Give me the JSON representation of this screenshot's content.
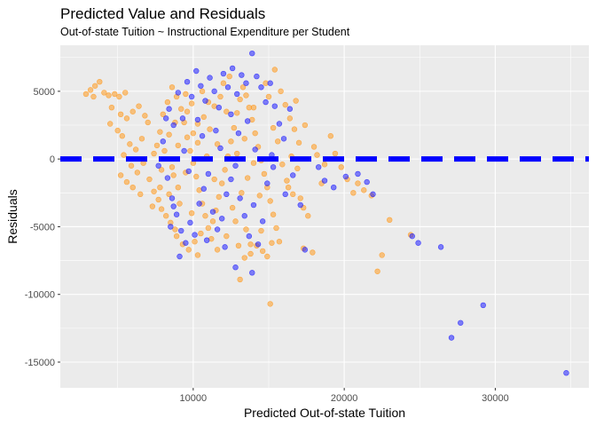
{
  "chart_data": {
    "type": "scatter",
    "title": "Predicted Value and Residuals",
    "subtitle": "Out-of-state Tuition ~ Instructional Expenditure per Student",
    "xlabel": "Predicted Out-of-state Tuition",
    "ylabel": "Residuals",
    "xlim": [
      1200,
      36200
    ],
    "ylim": [
      -16900,
      8400
    ],
    "x_ticks": [
      {
        "value": 10000,
        "label": "10000"
      },
      {
        "value": 20000,
        "label": "20000"
      },
      {
        "value": 30000,
        "label": "30000"
      }
    ],
    "y_ticks": [
      {
        "value": 5000,
        "label": "5000"
      },
      {
        "value": 0,
        "label": "0"
      },
      {
        "value": -5000,
        "label": "-5000"
      },
      {
        "value": -10000,
        "label": "-10000"
      },
      {
        "value": -15000,
        "label": "-15000"
      }
    ],
    "grid": true,
    "reference_line": {
      "y": 0,
      "style": "dashed",
      "color": "#0000ff"
    },
    "colors": {
      "series_a": "#ff9a1f",
      "series_b": "#1f1fff",
      "panel": "#ebebeb",
      "grid": "#ffffff"
    },
    "series": [
      {
        "color": "#ff9a1f",
        "points": [
          [
            2900,
            4800
          ],
          [
            3200,
            5100
          ],
          [
            3500,
            5400
          ],
          [
            3800,
            5700
          ],
          [
            4100,
            4900
          ],
          [
            4400,
            4700
          ],
          [
            4800,
            4800
          ],
          [
            5100,
            4600
          ],
          [
            5500,
            4900
          ],
          [
            3400,
            4600
          ],
          [
            4600,
            3800
          ],
          [
            5200,
            3300
          ],
          [
            5600,
            3000
          ],
          [
            6000,
            3500
          ],
          [
            6400,
            3900
          ],
          [
            6800,
            3200
          ],
          [
            7000,
            2700
          ],
          [
            4500,
            2600
          ],
          [
            5000,
            2100
          ],
          [
            5300,
            1700
          ],
          [
            5800,
            1100
          ],
          [
            6200,
            700
          ],
          [
            6600,
            1500
          ],
          [
            5400,
            300
          ],
          [
            5900,
            -500
          ],
          [
            6300,
            -1000
          ],
          [
            6700,
            -300
          ],
          [
            5200,
            -1200
          ],
          [
            5600,
            -1700
          ],
          [
            6000,
            -2100
          ],
          [
            6500,
            -2600
          ],
          [
            7100,
            -1500
          ],
          [
            7400,
            -2400
          ],
          [
            7700,
            -3000
          ],
          [
            7300,
            -3500
          ],
          [
            7900,
            -3700
          ],
          [
            8200,
            -4200
          ],
          [
            8500,
            -4700
          ],
          [
            8800,
            -5200
          ],
          [
            7800,
            -2100
          ],
          [
            7600,
            1000
          ],
          [
            7800,
            2000
          ],
          [
            8000,
            3300
          ],
          [
            8300,
            4200
          ],
          [
            8600,
            5300
          ],
          [
            8900,
            4600
          ],
          [
            9200,
            3700
          ],
          [
            9400,
            2700
          ],
          [
            9600,
            1600
          ],
          [
            9800,
            600
          ],
          [
            10000,
            -300
          ],
          [
            10200,
            -1300
          ],
          [
            10400,
            -2300
          ],
          [
            10600,
            -3300
          ],
          [
            10800,
            -4200
          ],
          [
            11000,
            -5100
          ],
          [
            11200,
            -5900
          ],
          [
            9300,
            -6300
          ],
          [
            8900,
            -5700
          ],
          [
            9700,
            -6700
          ],
          [
            10100,
            -6100
          ],
          [
            10500,
            -5500
          ],
          [
            11300,
            -4600
          ],
          [
            11500,
            -3800
          ],
          [
            11700,
            -2800
          ],
          [
            11900,
            -1800
          ],
          [
            12100,
            -800
          ],
          [
            12300,
            200
          ],
          [
            12500,
            1300
          ],
          [
            12700,
            2300
          ],
          [
            12900,
            3400
          ],
          [
            13100,
            4400
          ],
          [
            13300,
            5300
          ],
          [
            13500,
            4700
          ],
          [
            13700,
            3800
          ],
          [
            13900,
            2900
          ],
          [
            14100,
            1900
          ],
          [
            14300,
            900
          ],
          [
            14500,
            -100
          ],
          [
            14700,
            -1100
          ],
          [
            14900,
            -2100
          ],
          [
            15100,
            -3100
          ],
          [
            15300,
            -4100
          ],
          [
            15500,
            -5100
          ],
          [
            15700,
            -6100
          ],
          [
            13000,
            -6400
          ],
          [
            13400,
            -7300
          ],
          [
            13800,
            -7000
          ],
          [
            14200,
            -6400
          ],
          [
            14600,
            -6800
          ],
          [
            14900,
            -7200
          ],
          [
            13100,
            -8900
          ],
          [
            15100,
            -10700
          ],
          [
            15400,
            6600
          ],
          [
            15800,
            5000
          ],
          [
            16100,
            4000
          ],
          [
            16400,
            3000
          ],
          [
            16700,
            2200
          ],
          [
            17000,
            1200
          ],
          [
            16500,
            200
          ],
          [
            16900,
            -700
          ],
          [
            16200,
            -1600
          ],
          [
            16600,
            -2600
          ],
          [
            17300,
            -3600
          ],
          [
            17600,
            -4200
          ],
          [
            17900,
            -6900
          ],
          [
            17300,
            -6600
          ],
          [
            18200,
            300
          ],
          [
            18700,
            -400
          ],
          [
            19100,
            1700
          ],
          [
            19400,
            400
          ],
          [
            19800,
            -600
          ],
          [
            20200,
            -1500
          ],
          [
            20600,
            -2500
          ],
          [
            20900,
            -1800
          ],
          [
            21300,
            -2300
          ],
          [
            21800,
            -2700
          ],
          [
            22200,
            -8300
          ],
          [
            22500,
            -7100
          ],
          [
            23000,
            -4500
          ],
          [
            24400,
            -5600
          ],
          [
            9000,
            1000
          ],
          [
            9500,
            -1000
          ],
          [
            10300,
            1200
          ],
          [
            10900,
            200
          ],
          [
            11100,
            2200
          ],
          [
            11600,
            1100
          ],
          [
            8700,
            -1200
          ],
          [
            8400,
            -2600
          ],
          [
            9100,
            -3300
          ],
          [
            9900,
            -4000
          ],
          [
            10700,
            3100
          ],
          [
            11400,
            3900
          ],
          [
            11800,
            4600
          ],
          [
            12200,
            3500
          ],
          [
            12600,
            -3600
          ],
          [
            12800,
            -4600
          ],
          [
            13200,
            -2500
          ],
          [
            13600,
            -1400
          ],
          [
            14000,
            -300
          ],
          [
            14400,
            -2700
          ],
          [
            9500,
            4800
          ],
          [
            9900,
            4100
          ],
          [
            10600,
            5000
          ],
          [
            11000,
            4200
          ],
          [
            8100,
            600
          ],
          [
            8400,
            1800
          ],
          [
            7400,
            400
          ],
          [
            7900,
            -800
          ],
          [
            8800,
            2700
          ],
          [
            9600,
            3500
          ],
          [
            10300,
            2600
          ],
          [
            12000,
            5600
          ],
          [
            12400,
            6100
          ],
          [
            14800,
            5600
          ],
          [
            15000,
            4600
          ],
          [
            15300,
            2300
          ],
          [
            15600,
            1300
          ],
          [
            15900,
            -400
          ],
          [
            16300,
            -2100
          ],
          [
            14000,
            3800
          ],
          [
            13500,
            -5200
          ],
          [
            12200,
            -5700
          ],
          [
            11600,
            -6700
          ],
          [
            10300,
            -7100
          ],
          [
            14500,
            -5300
          ],
          [
            13800,
            -6300
          ],
          [
            15200,
            -6200
          ],
          [
            17100,
            -2900
          ],
          [
            18000,
            900
          ],
          [
            18500,
            -1800
          ],
          [
            16800,
            4300
          ],
          [
            17400,
            2500
          ],
          [
            9000,
            -2100
          ],
          [
            8600,
            -600
          ],
          [
            10000,
            1900
          ],
          [
            11400,
            -1500
          ],
          [
            12900,
            400
          ],
          [
            13400,
            1500
          ]
        ]
      },
      {
        "color": "#1f1fff",
        "points": [
          [
            8000,
            1300
          ],
          [
            8400,
            3700
          ],
          [
            8700,
            2500
          ],
          [
            9000,
            4900
          ],
          [
            9300,
            3000
          ],
          [
            9600,
            5700
          ],
          [
            9900,
            4600
          ],
          [
            10200,
            6500
          ],
          [
            10500,
            5400
          ],
          [
            10800,
            4300
          ],
          [
            11100,
            6000
          ],
          [
            11400,
            5000
          ],
          [
            11700,
            3800
          ],
          [
            12000,
            6300
          ],
          [
            12300,
            5300
          ],
          [
            12600,
            6700
          ],
          [
            12900,
            4800
          ],
          [
            13200,
            6200
          ],
          [
            13500,
            5600
          ],
          [
            13900,
            7800
          ],
          [
            14200,
            6100
          ],
          [
            14500,
            5300
          ],
          [
            14800,
            4200
          ],
          [
            15100,
            5600
          ],
          [
            15400,
            3900
          ],
          [
            15700,
            2600
          ],
          [
            16000,
            1500
          ],
          [
            8300,
            -1400
          ],
          [
            8600,
            -2900
          ],
          [
            8900,
            -4100
          ],
          [
            9200,
            -5300
          ],
          [
            9500,
            -6200
          ],
          [
            9100,
            -7200
          ],
          [
            8700,
            -3500
          ],
          [
            9800,
            -4700
          ],
          [
            10100,
            -5600
          ],
          [
            10400,
            -3300
          ],
          [
            10700,
            -2200
          ],
          [
            11000,
            -1100
          ],
          [
            11300,
            -3900
          ],
          [
            11600,
            -5200
          ],
          [
            11900,
            -4400
          ],
          [
            12200,
            -2600
          ],
          [
            12500,
            -1500
          ],
          [
            12800,
            -500
          ],
          [
            13100,
            -2900
          ],
          [
            13400,
            -4200
          ],
          [
            13700,
            -5700
          ],
          [
            14000,
            -3400
          ],
          [
            14300,
            -6300
          ],
          [
            14600,
            -4600
          ],
          [
            13900,
            -8400
          ],
          [
            12800,
            -8000
          ],
          [
            14900,
            -1800
          ],
          [
            15300,
            -600
          ],
          [
            16100,
            -2600
          ],
          [
            16600,
            -1200
          ],
          [
            17100,
            -3400
          ],
          [
            17400,
            -6700
          ],
          [
            18300,
            -600
          ],
          [
            18700,
            -1600
          ],
          [
            19300,
            -2100
          ],
          [
            20100,
            -1300
          ],
          [
            20900,
            -1100
          ],
          [
            21500,
            -1700
          ],
          [
            21900,
            -2600
          ],
          [
            24500,
            -5700
          ],
          [
            24900,
            -6200
          ],
          [
            26400,
            -6500
          ],
          [
            27100,
            -13200
          ],
          [
            27700,
            -12100
          ],
          [
            29200,
            -10800
          ],
          [
            34700,
            -15800
          ],
          [
            9400,
            600
          ],
          [
            10600,
            1700
          ],
          [
            11800,
            800
          ],
          [
            13000,
            1900
          ],
          [
            14100,
            700
          ],
          [
            7700,
            -500
          ],
          [
            8200,
            3000
          ],
          [
            10900,
            -6000
          ],
          [
            12100,
            -6500
          ],
          [
            10300,
            2900
          ],
          [
            12500,
            3300
          ],
          [
            9700,
            -900
          ],
          [
            11500,
            2100
          ],
          [
            13600,
            2800
          ],
          [
            15200,
            300
          ],
          [
            8500,
            -5000
          ],
          [
            16400,
            3700
          ]
        ]
      }
    ]
  }
}
